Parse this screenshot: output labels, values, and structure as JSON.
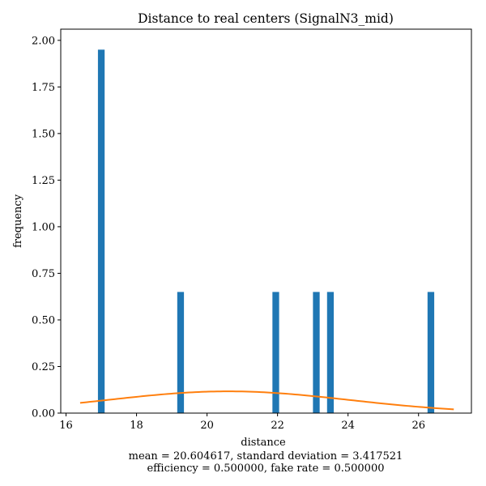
{
  "chart_data": {
    "type": "bar",
    "title": "Distance to real centers (SignalN3_mid)",
    "xlabel": "distance",
    "ylabel": "frequency",
    "xlim": [
      15.85,
      27.5
    ],
    "ylim": [
      0.0,
      2.06
    ],
    "xticks": [
      16,
      18,
      20,
      22,
      24,
      26
    ],
    "xtick_labels": [
      "16",
      "18",
      "20",
      "22",
      "24",
      "26"
    ],
    "yticks": [
      0.0,
      0.25,
      0.5,
      0.75,
      1.0,
      1.25,
      1.5,
      1.75,
      2.0
    ],
    "ytick_labels": [
      "0.00",
      "0.25",
      "0.50",
      "0.75",
      "1.00",
      "1.25",
      "1.50",
      "1.75",
      "2.00"
    ],
    "bar_width": 0.19,
    "bars": [
      {
        "x": 17.0,
        "value": 1.95
      },
      {
        "x": 19.25,
        "value": 0.65
      },
      {
        "x": 21.95,
        "value": 0.65
      },
      {
        "x": 23.1,
        "value": 0.65
      },
      {
        "x": 23.5,
        "value": 0.65
      },
      {
        "x": 26.35,
        "value": 0.65
      }
    ],
    "bar_color": "#1f77b4",
    "curve": {
      "type": "normal_pdf",
      "mean": 20.604617,
      "std": 3.417521,
      "x_range": [
        16.4,
        27.0
      ],
      "color": "#ff7f0e"
    },
    "grid": false,
    "annotations": [
      "mean = 20.604617, standard deviation = 3.417521",
      "efficiency = 0.500000, fake rate = 0.500000"
    ]
  }
}
